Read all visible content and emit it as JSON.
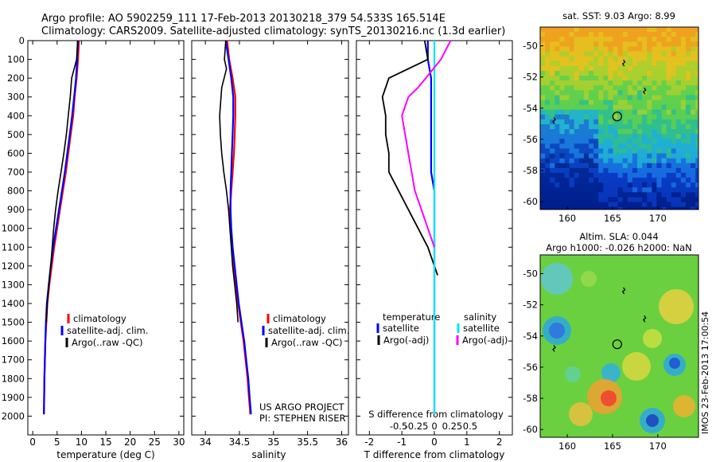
{
  "header": {
    "line1": "Argo profile: AO 5902259_111 17-Feb-2013 20130218_379 54.533S 165.514E",
    "line2": "Climatology: CARS2009. Satellite-adjusted climatology: synTS_20130216.nc (1.3d earlier)"
  },
  "colors": {
    "climatology": "#ff0000",
    "satellite": "#0000ff",
    "argo": "#000000",
    "salinity_satellite": "#00e5ff",
    "salinity_argo": "#ff00ff"
  },
  "chart_data": [
    {
      "type": "line",
      "name": "temperature-panel",
      "xlabel": "temperature (deg C)",
      "ylabel": "",
      "xlim": [
        -1,
        31
      ],
      "ylim": [
        2100,
        0
      ],
      "xticks": [
        0,
        5,
        10,
        15,
        20,
        25,
        30
      ],
      "yticks": [
        0,
        100,
        200,
        300,
        400,
        500,
        600,
        700,
        800,
        900,
        1000,
        1100,
        1200,
        1300,
        1400,
        1500,
        1600,
        1700,
        1800,
        1900,
        2000
      ],
      "legend": [
        "climatology",
        "satellite-adj. clim.",
        "Argo(..raw -QC)"
      ],
      "series": [
        {
          "name": "climatology",
          "x": [
            9.5,
            9.3,
            9.0,
            8.6,
            8.3,
            7.8,
            7.3,
            6.8,
            6.2,
            5.6,
            5.0,
            4.4,
            3.9,
            3.4,
            3.0,
            2.8,
            2.6,
            2.5,
            2.4,
            2.35,
            2.3
          ],
          "y": [
            0,
            100,
            200,
            300,
            400,
            500,
            600,
            700,
            800,
            900,
            1000,
            1100,
            1200,
            1300,
            1400,
            1500,
            1600,
            1700,
            1800,
            1900,
            1990
          ]
        },
        {
          "name": "satellite-adj. clim.",
          "x": [
            9.3,
            9.1,
            8.9,
            8.5,
            8.1,
            7.6,
            7.1,
            6.6,
            6.0,
            5.4,
            4.8,
            4.2,
            3.7,
            3.3,
            2.9,
            2.7,
            2.6,
            2.5,
            2.4,
            2.35,
            2.3
          ],
          "y": [
            0,
            100,
            200,
            300,
            400,
            500,
            600,
            700,
            800,
            900,
            1000,
            1100,
            1200,
            1300,
            1400,
            1500,
            1600,
            1700,
            1800,
            1900,
            1990
          ]
        },
        {
          "name": "Argo(..raw -QC)",
          "x": [
            9.2,
            9.0,
            8.0,
            7.7,
            7.3,
            6.9,
            6.4,
            5.8,
            5.2,
            4.7,
            4.3,
            4.0,
            3.7,
            3.3,
            3.0,
            2.8
          ],
          "y": [
            0,
            100,
            200,
            300,
            400,
            500,
            600,
            700,
            800,
            900,
            1000,
            1100,
            1200,
            1300,
            1400,
            1500
          ]
        }
      ]
    },
    {
      "type": "line",
      "name": "salinity-panel",
      "xlabel": "salinity",
      "xlim": [
        33.8,
        36.1
      ],
      "ylim": [
        2100,
        0
      ],
      "xticks": [
        34,
        34.5,
        35,
        35.5,
        36
      ],
      "legend": [
        "climatology",
        "satellite-adj. clim.",
        "Argo(..raw -QC)"
      ],
      "series": [
        {
          "name": "climatology",
          "x": [
            34.32,
            34.35,
            34.4,
            34.44,
            34.44,
            34.43,
            34.42,
            34.4,
            34.38,
            34.36,
            34.37,
            34.39,
            34.42,
            34.45,
            34.48,
            34.52,
            34.56,
            34.59,
            34.62,
            34.64,
            34.66
          ],
          "y": [
            0,
            100,
            200,
            300,
            400,
            500,
            600,
            700,
            800,
            900,
            1000,
            1100,
            1200,
            1300,
            1400,
            1500,
            1600,
            1700,
            1800,
            1900,
            1990
          ]
        },
        {
          "name": "satellite-adj. clim.",
          "x": [
            34.3,
            34.34,
            34.38,
            34.41,
            34.41,
            34.4,
            34.39,
            34.38,
            34.37,
            34.37,
            34.38,
            34.4,
            34.43,
            34.46,
            34.49,
            34.53,
            34.57,
            34.6,
            34.63,
            34.65,
            34.67
          ],
          "y": [
            0,
            100,
            200,
            300,
            400,
            500,
            600,
            700,
            800,
            900,
            1000,
            1100,
            1200,
            1300,
            1400,
            1500,
            1600,
            1700,
            1800,
            1900,
            1990
          ]
        },
        {
          "name": "Argo(..raw -QC)",
          "x": [
            34.3,
            34.28,
            34.31,
            34.24,
            34.21,
            34.22,
            34.24,
            34.27,
            34.31,
            34.34,
            34.36,
            34.38,
            34.4,
            34.43,
            34.46,
            34.48
          ],
          "y": [
            0,
            100,
            150,
            250,
            400,
            500,
            600,
            700,
            800,
            900,
            1000,
            1100,
            1200,
            1300,
            1400,
            1500
          ]
        }
      ],
      "annotations": [
        "US ARGO PROJECT",
        "PI: STEPHEN RISER"
      ]
    },
    {
      "type": "line",
      "name": "difference-panel",
      "xlabel": "T difference from climatology",
      "xlabel_top": "S difference from climatology",
      "xlim": [
        -2.4,
        2.4
      ],
      "ylim": [
        2100,
        0
      ],
      "xticks": [
        -2,
        -1,
        0,
        1,
        2
      ],
      "sticks": [
        "-0.5",
        "-0.25",
        "0",
        "0.25",
        "0.5"
      ],
      "legend_left_title": "temperature",
      "legend_right_title": "salinity",
      "legend": [
        "satellite",
        "Argo(-adj)",
        "satellite",
        "Argo(-adj)"
      ],
      "series": [
        {
          "name": "temperature satellite",
          "x": [
            -0.2,
            -0.2,
            -0.1,
            -0.1,
            -0.1,
            -0.1,
            -0.1,
            -0.1,
            0,
            0,
            0,
            0,
            0,
            0,
            0,
            0,
            0,
            0,
            0,
            0,
            0
          ],
          "y": [
            0,
            100,
            200,
            300,
            400,
            500,
            600,
            700,
            800,
            900,
            1000,
            1100,
            1200,
            1300,
            1400,
            1500,
            1600,
            1700,
            1800,
            1900,
            1990
          ]
        },
        {
          "name": "temperature Argo(-adj)",
          "x": [
            -0.3,
            -0.2,
            -1.4,
            -1.6,
            -1.5,
            -1.5,
            -1.4,
            -1.4,
            -1.1,
            -0.8,
            -0.5,
            -0.2,
            0.1
          ],
          "y": [
            0,
            100,
            200,
            300,
            400,
            500,
            600,
            700,
            800,
            900,
            1000,
            1100,
            1250
          ]
        },
        {
          "name": "salinity satellite",
          "x": [
            0,
            0,
            0,
            0,
            0,
            0,
            0,
            0,
            0,
            0,
            0,
            0,
            0,
            0,
            0,
            0,
            0,
            0,
            0,
            0,
            0
          ],
          "y": [
            0,
            100,
            200,
            300,
            400,
            500,
            600,
            700,
            800,
            900,
            1000,
            1100,
            1200,
            1300,
            1400,
            1500,
            1600,
            1700,
            1800,
            1900,
            1990
          ]
        },
        {
          "name": "salinity Argo(-adj)",
          "x": [
            0.5,
            0.2,
            -0.5,
            -0.8,
            -1.0,
            -0.9,
            -0.8,
            -0.7,
            -0.6,
            -0.4,
            -0.2,
            0
          ],
          "y": [
            0,
            100,
            250,
            300,
            400,
            500,
            600,
            700,
            800,
            900,
            1000,
            1100
          ]
        }
      ]
    },
    {
      "type": "heatmap",
      "name": "sst-map",
      "title": "sat. SST: 9.03 Argo: 8.99",
      "xlim": [
        157,
        174.5
      ],
      "ylim": [
        -60.5,
        -48.8
      ],
      "xticks": [
        160,
        165,
        170
      ],
      "yticks": [
        -50,
        -52,
        -54,
        -56,
        -58,
        -60
      ],
      "marker": {
        "lon": 165.514,
        "lat": -54.533
      }
    },
    {
      "type": "heatmap",
      "name": "sla-map",
      "title": "Altim. SLA: 0.044",
      "subtitle": "Argo h1000: -0.026 h2000: NaN",
      "xlim": [
        157,
        174.5
      ],
      "ylim": [
        -60.5,
        -48.8
      ],
      "xticks": [
        160,
        165,
        170
      ],
      "yticks": [
        -50,
        -52,
        -54,
        -56,
        -58,
        -60
      ],
      "marker": {
        "lon": 165.514,
        "lat": -54.533
      },
      "side_label": "IMOS 23-Feb-2013 17:00:54"
    }
  ]
}
